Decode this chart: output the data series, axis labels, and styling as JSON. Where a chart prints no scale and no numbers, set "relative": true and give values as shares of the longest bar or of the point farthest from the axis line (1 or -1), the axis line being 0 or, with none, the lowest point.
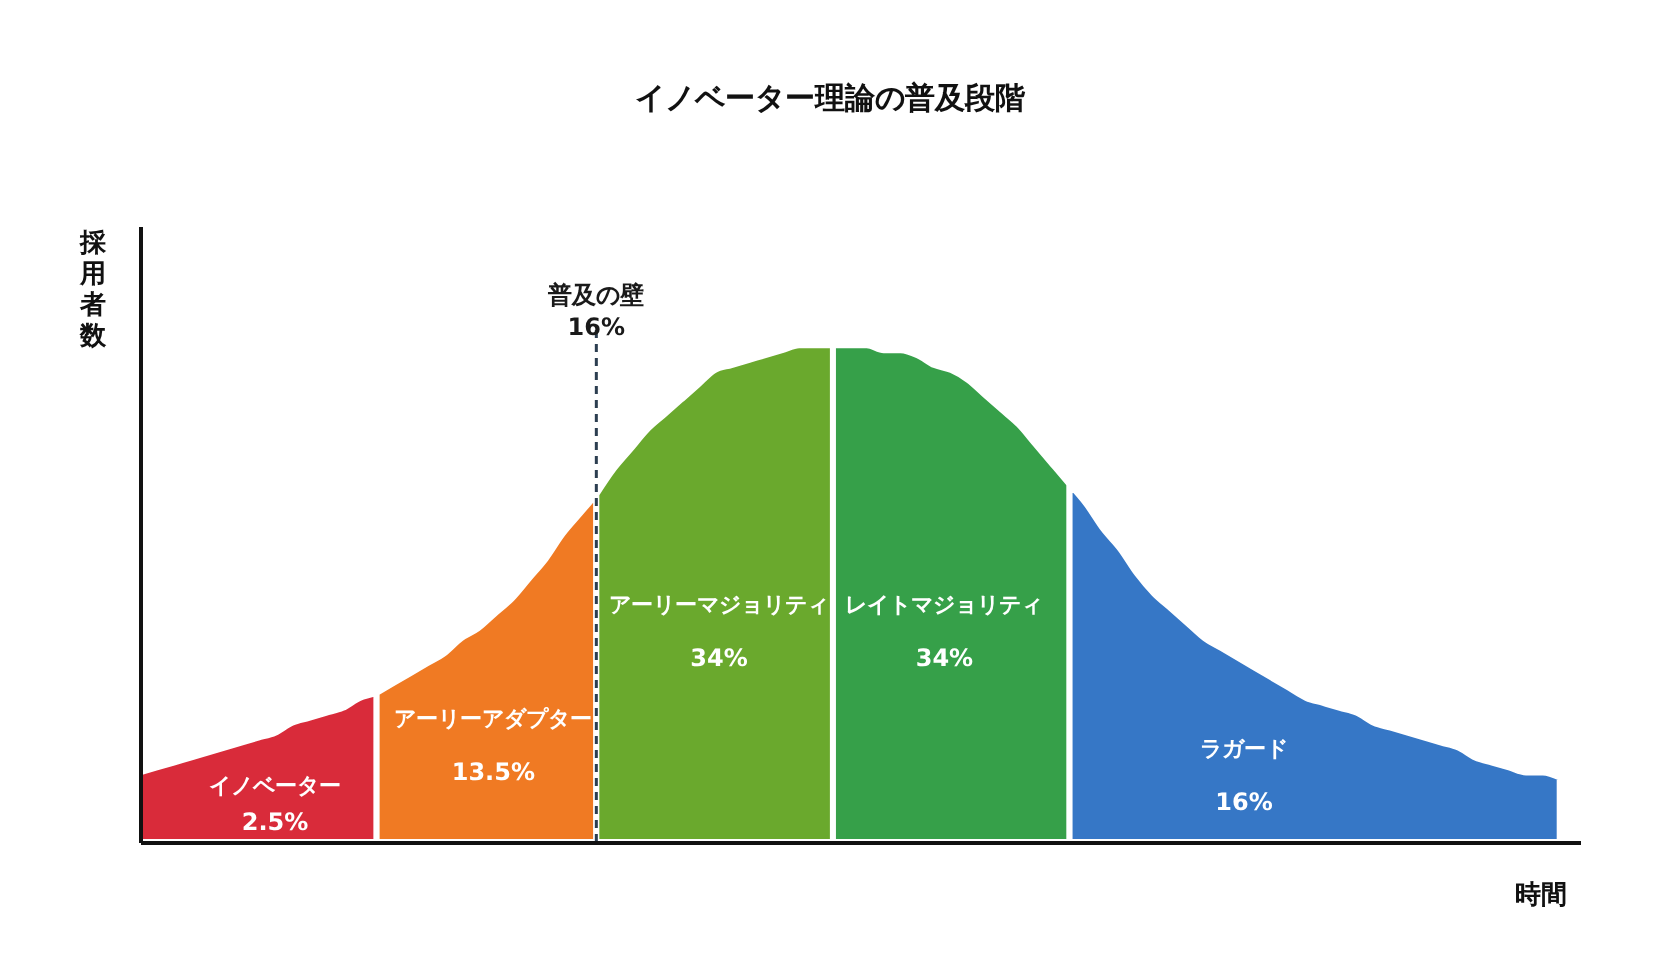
{
  "chart_data": {
    "type": "area",
    "title": "イノベーター理論の普及段階",
    "ylabel": "採用者数",
    "xlabel": "時間",
    "relative": true,
    "categories": [
      null,
      null,
      null,
      null,
      null,
      null,
      null,
      null,
      null,
      null,
      null,
      null,
      null,
      null,
      null,
      null,
      null,
      null,
      null,
      null,
      null,
      null,
      null,
      null,
      null,
      null,
      null,
      null,
      null,
      null,
      null,
      null,
      null,
      null,
      null,
      null,
      null,
      null,
      null,
      null,
      null,
      null,
      null,
      null,
      null,
      null,
      null,
      null,
      null,
      null,
      null,
      null,
      null,
      null,
      null,
      null,
      null,
      null,
      null,
      null,
      null,
      null,
      null,
      null,
      null,
      null,
      null,
      null,
      null,
      null,
      null,
      null,
      null,
      null,
      null,
      null,
      null,
      null,
      null,
      null,
      null,
      null,
      null,
      null,
      null
    ],
    "series": [
      {
        "name": "イノベーター",
        "color": "#d92b3a",
        "values": [
          0.14,
          0.15,
          0.16,
          0.17,
          0.18,
          0.19,
          0.2,
          0.21,
          0.22,
          0.24,
          0.25,
          0.26,
          0.27,
          0.29,
          0.3,
          null,
          null,
          null,
          null,
          null,
          null,
          null,
          null,
          null,
          null,
          null,
          null,
          null,
          null,
          null,
          null,
          null,
          null,
          null,
          null,
          null,
          null,
          null,
          null,
          null,
          null,
          null,
          null,
          null,
          null,
          null,
          null,
          null,
          null,
          null,
          null,
          null,
          null,
          null,
          null,
          null,
          null,
          null,
          null,
          null,
          null,
          null,
          null,
          null,
          null,
          null,
          null,
          null,
          null,
          null,
          null,
          null,
          null,
          null,
          null,
          null,
          null,
          null,
          null,
          null,
          null,
          null,
          null,
          null,
          null
        ]
      },
      {
        "name": "アーリーアダプター",
        "color": "#f07a23",
        "values": [
          null,
          null,
          null,
          null,
          null,
          null,
          null,
          null,
          null,
          null,
          null,
          null,
          null,
          null,
          0.3,
          0.32,
          0.34,
          0.36,
          0.38,
          0.41,
          0.43,
          0.46,
          0.49,
          0.53,
          0.57,
          0.62,
          0.66,
          0.7,
          null,
          null,
          null,
          null,
          null,
          null,
          null,
          null,
          null,
          null,
          null,
          null,
          null,
          null,
          null,
          null,
          null,
          null,
          null,
          null,
          null,
          null,
          null,
          null,
          null,
          null,
          null,
          null,
          null,
          null,
          null,
          null,
          null,
          null,
          null,
          null,
          null,
          null,
          null,
          null,
          null,
          null,
          null,
          null,
          null,
          null,
          null,
          null,
          null,
          null,
          null,
          null,
          null,
          null,
          null,
          null,
          null
        ]
      },
      {
        "name": "アーリーマジョリティ",
        "color": "#6aa92d",
        "values": [
          null,
          null,
          null,
          null,
          null,
          null,
          null,
          null,
          null,
          null,
          null,
          null,
          null,
          null,
          null,
          null,
          null,
          null,
          null,
          null,
          null,
          null,
          null,
          null,
          null,
          null,
          null,
          0.7,
          0.75,
          0.79,
          0.83,
          0.86,
          0.89,
          0.92,
          0.95,
          0.96,
          0.97,
          0.98,
          0.99,
          1,
          1,
          1,
          null,
          null,
          null,
          null,
          null,
          null,
          null,
          null,
          null,
          null,
          null,
          null,
          null,
          null,
          null,
          null,
          null,
          null,
          null,
          null,
          null,
          null,
          null,
          null,
          null,
          null,
          null,
          null,
          null,
          null,
          null,
          null,
          null,
          null,
          null,
          null,
          null,
          null,
          null,
          null,
          null,
          null,
          null
        ]
      },
      {
        "name": "レイトマジョリティ",
        "color": "#36a049",
        "values": [
          null,
          null,
          null,
          null,
          null,
          null,
          null,
          null,
          null,
          null,
          null,
          null,
          null,
          null,
          null,
          null,
          null,
          null,
          null,
          null,
          null,
          null,
          null,
          null,
          null,
          null,
          null,
          null,
          null,
          null,
          null,
          null,
          null,
          null,
          null,
          null,
          null,
          null,
          null,
          null,
          null,
          1,
          1,
          1,
          0.99,
          0.99,
          0.98,
          0.96,
          0.95,
          0.93,
          0.9,
          0.87,
          0.84,
          0.8,
          0.76,
          0.72,
          null,
          null,
          null,
          null,
          null,
          null,
          null,
          null,
          null,
          null,
          null,
          null,
          null,
          null,
          null,
          null,
          null,
          null,
          null,
          null,
          null,
          null,
          null,
          null,
          null,
          null,
          null,
          null,
          null
        ]
      },
      {
        "name": "ラガード",
        "color": "#3677c6",
        "values": [
          null,
          null,
          null,
          null,
          null,
          null,
          null,
          null,
          null,
          null,
          null,
          null,
          null,
          null,
          null,
          null,
          null,
          null,
          null,
          null,
          null,
          null,
          null,
          null,
          null,
          null,
          null,
          null,
          null,
          null,
          null,
          null,
          null,
          null,
          null,
          null,
          null,
          null,
          null,
          null,
          null,
          null,
          null,
          null,
          null,
          null,
          null,
          null,
          null,
          null,
          null,
          null,
          null,
          null,
          null,
          0.72,
          0.68,
          0.63,
          0.59,
          0.54,
          0.5,
          0.47,
          0.44,
          0.41,
          0.39,
          0.37,
          0.35,
          0.33,
          0.31,
          0.29,
          0.28,
          0.27,
          0.26,
          0.24,
          0.23,
          0.22,
          0.21,
          0.2,
          0.19,
          0.17,
          0.16,
          0.15,
          0.14,
          0.14,
          0.13
        ]
      }
    ],
    "annotations": [
      "2.5%",
      "13.5%",
      "34%",
      "34%",
      "16%",
      "普及の壁\n16%"
    ]
  }
}
